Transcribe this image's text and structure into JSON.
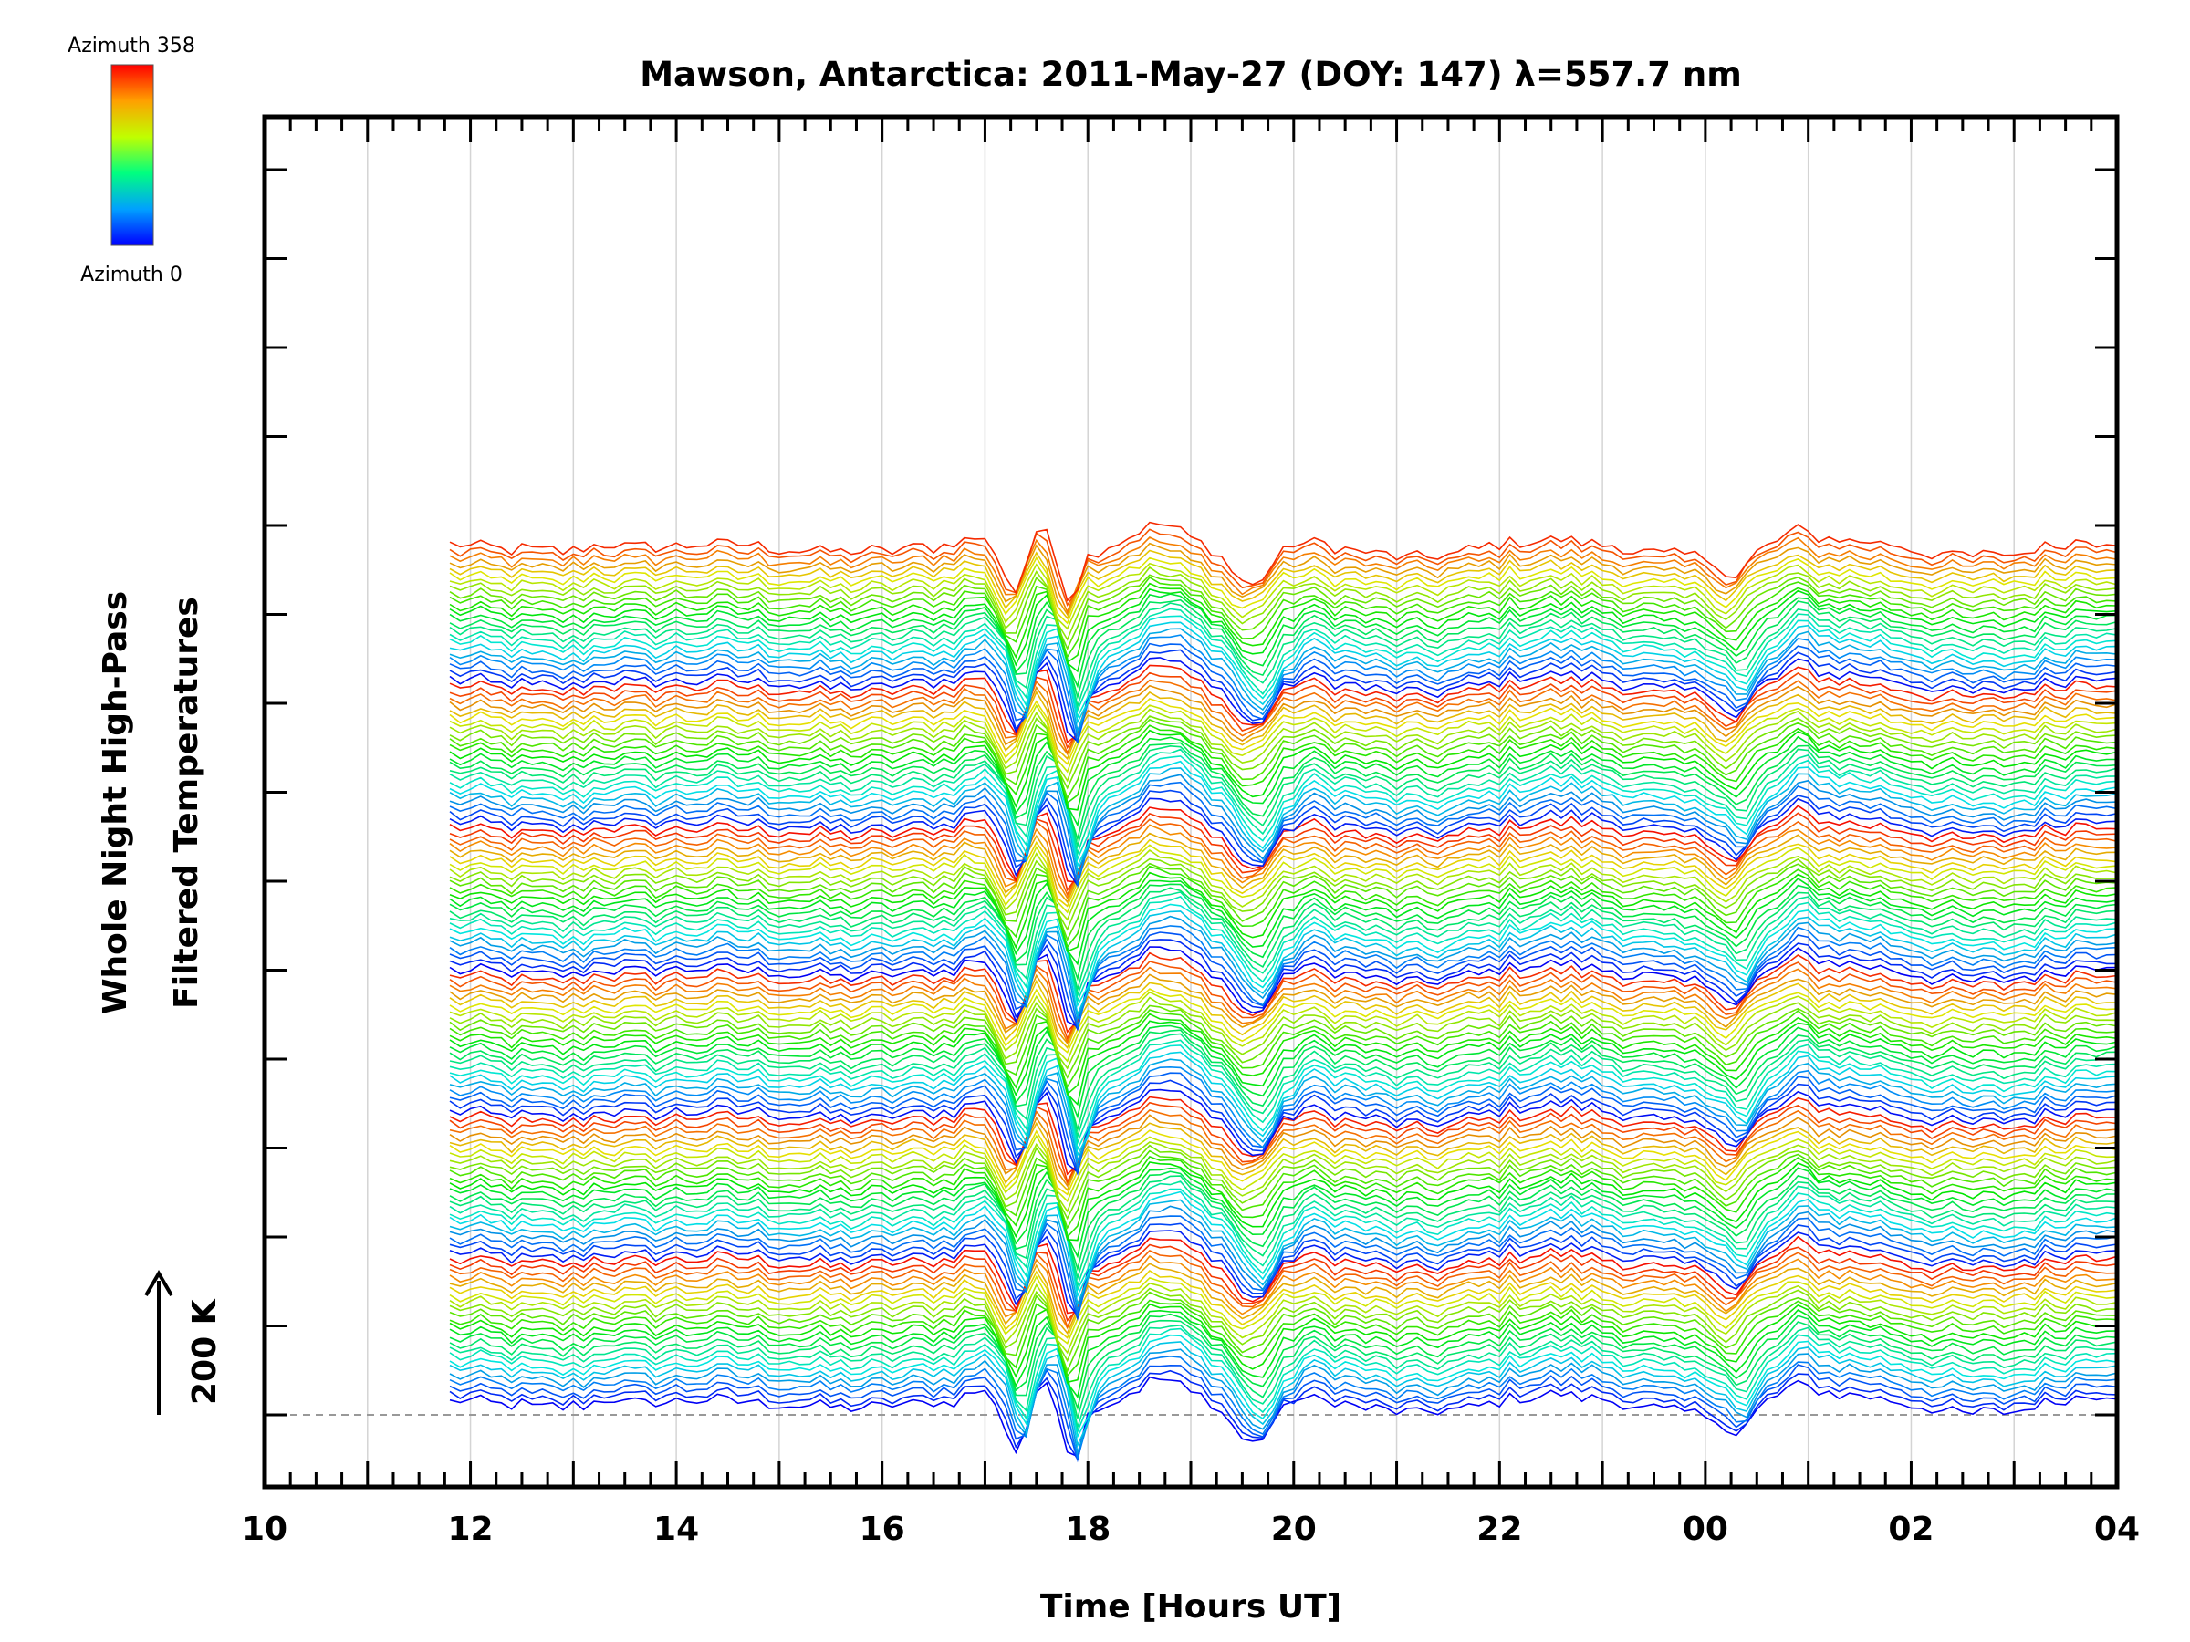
{
  "chart_data": {
    "type": "line",
    "title": "Mawson, Antarctica: 2011-May-27 (DOY: 147) λ=557.7 nm",
    "xlabel": "Time [Hours UT]",
    "ylabel_line1": "Whole Night High-Pass",
    "ylabel_line2": "Filtered Temperatures",
    "x_tick_labels": [
      "10",
      "12",
      "14",
      "16",
      "18",
      "20",
      "22",
      "00",
      "02",
      "04"
    ],
    "xlim": [
      10,
      28
    ],
    "x_data_range": [
      11.8,
      28
    ],
    "colorbar": {
      "top_label": "Azimuth 358",
      "bottom_label": "Azimuth 0",
      "colormap": "rainbow",
      "min": 0,
      "max": 358
    },
    "scale_bar_label": "200 K",
    "grid": true,
    "series_count": 140,
    "azimuth_cycles": 6,
    "colors": {
      "axis": "#000000",
      "grid": "#d4d4d4",
      "baseline": "#999999"
    }
  }
}
